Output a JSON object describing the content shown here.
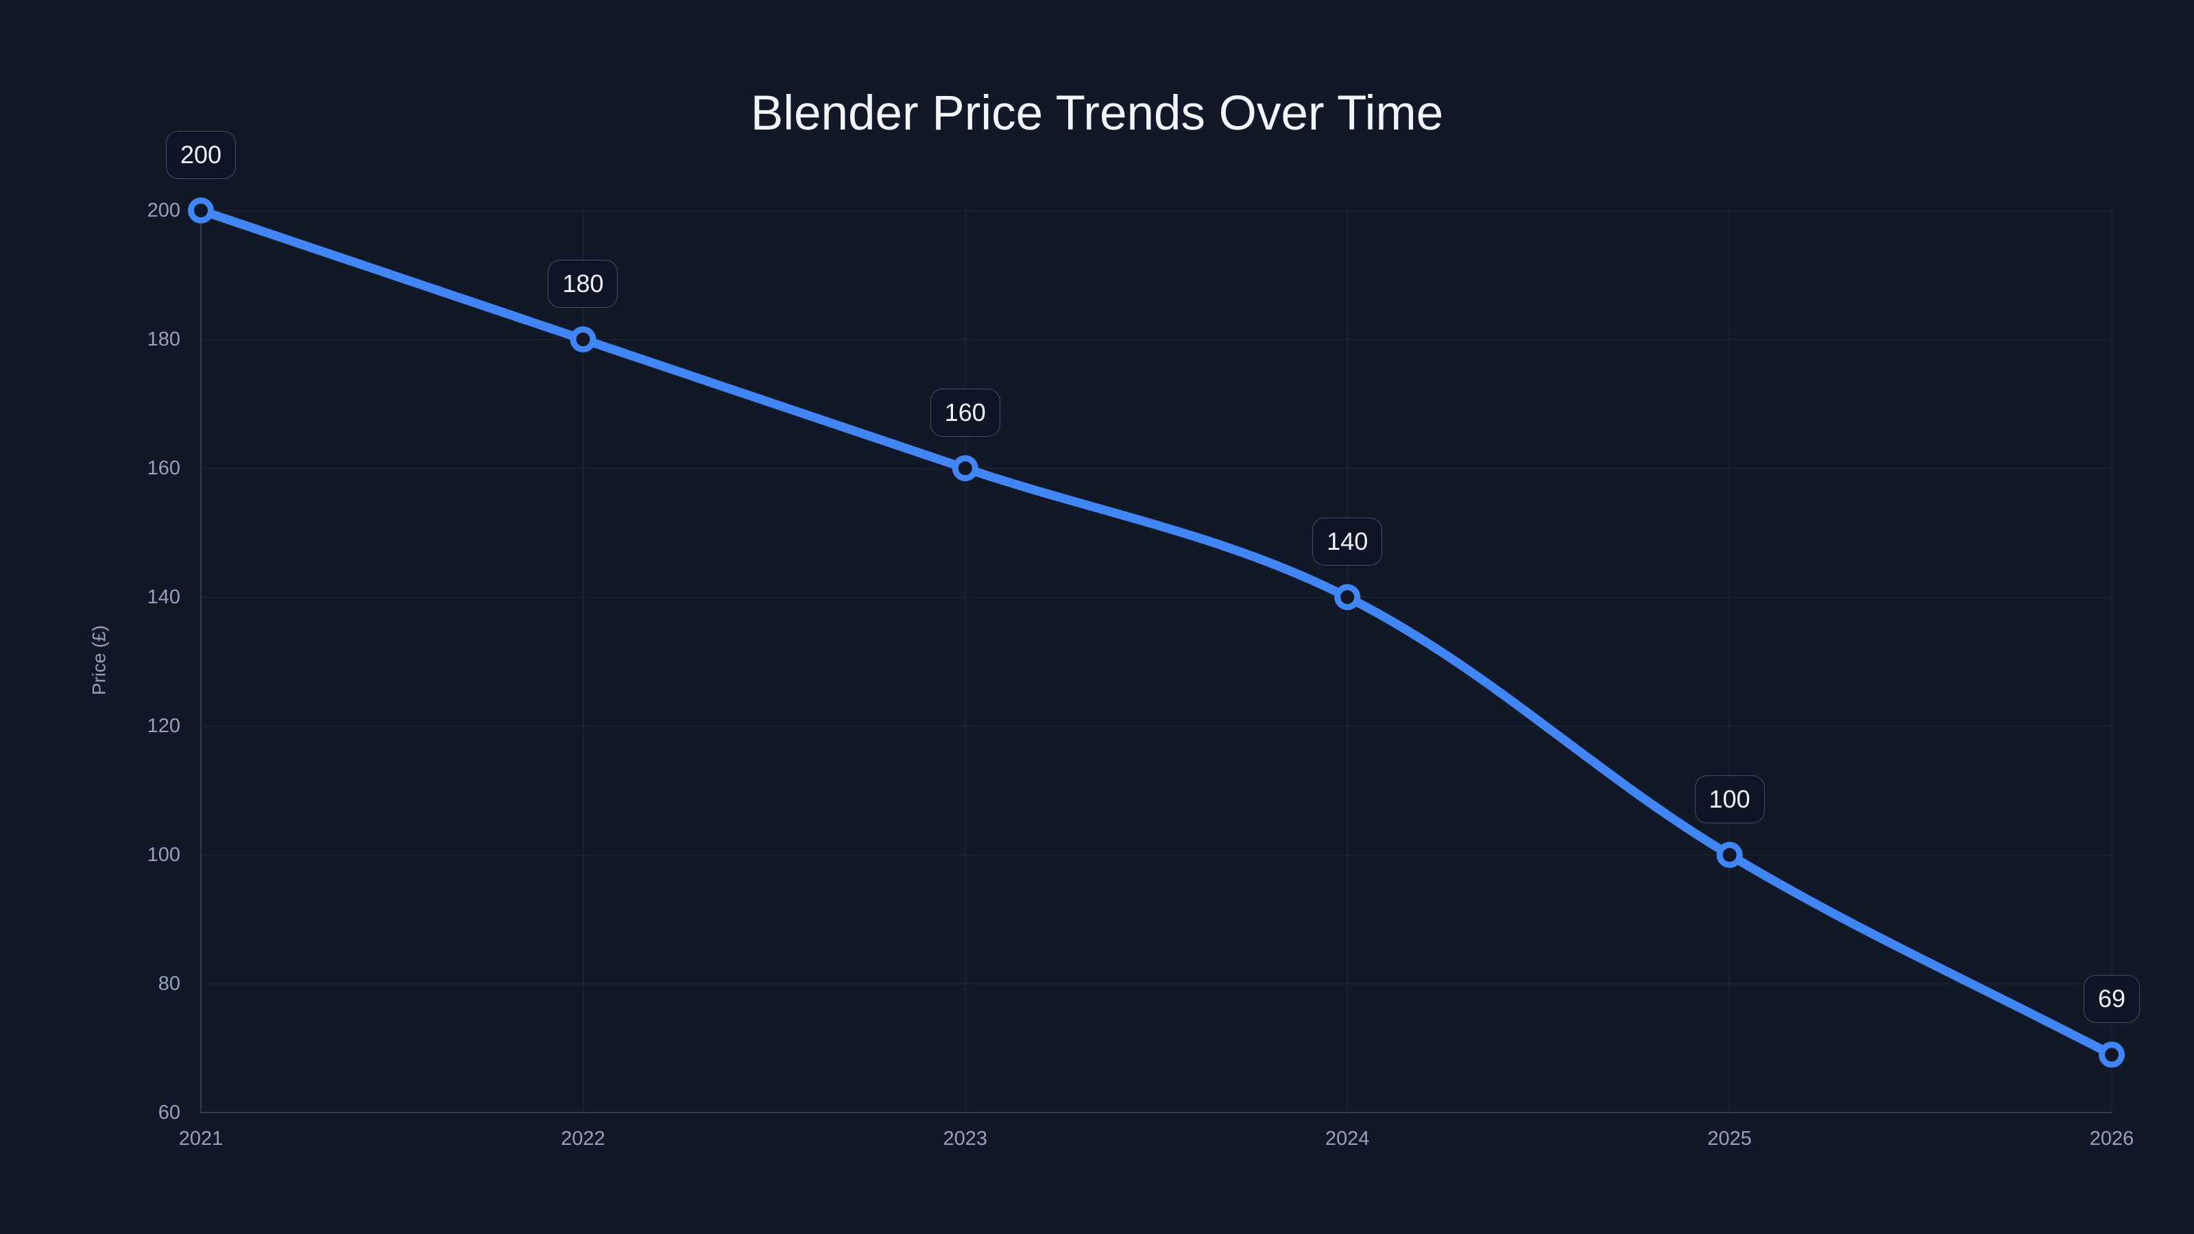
{
  "chart_data": {
    "type": "line",
    "title": "Blender Price Trends Over Time",
    "xlabel": "",
    "ylabel": "Price (£)",
    "categories": [
      "2021",
      "2022",
      "2023",
      "2024",
      "2025",
      "2026"
    ],
    "series": [
      {
        "name": "Blender Price",
        "values": [
          200,
          180,
          160,
          140,
          100,
          69
        ]
      }
    ],
    "point_labels": [
      "200",
      "180",
      "160",
      "140",
      "100",
      "69"
    ],
    "ylim": [
      60,
      200
    ],
    "yticks": [
      60,
      80,
      100,
      120,
      140,
      160,
      180,
      200
    ],
    "grid": true,
    "legend": false,
    "curve_tension": 0.35,
    "colors": {
      "background": "#111827",
      "line": "#4285f4",
      "marker_ring": "#4285f4",
      "marker_fill": "#0e1627",
      "grid": "rgba(148,163,184,0.13)",
      "axis_border": "rgba(148,163,184,0.28)",
      "tick_text": "#94a3b8",
      "title_text": "#f2f5fa",
      "data_label_text": "#eef2f8",
      "data_label_bg": "#0d1526",
      "data_label_border": "rgba(148,163,184,0.42)"
    }
  }
}
